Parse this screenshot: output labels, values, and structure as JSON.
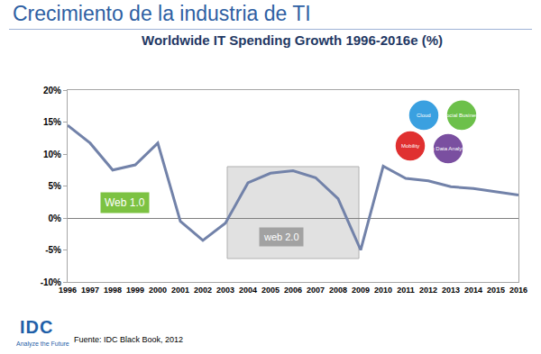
{
  "header": {
    "title": "Crecimiento de la industria de TI"
  },
  "chart_data": {
    "type": "line",
    "title": "Worldwide IT Spending Growth 1996-2016e (%)",
    "categories": [
      "1996",
      "1997",
      "1998",
      "1999",
      "2000",
      "2001",
      "2002",
      "2003",
      "2004",
      "2005",
      "2006",
      "2007",
      "2008",
      "2009",
      "2010",
      "2011",
      "2012",
      "2013",
      "2014",
      "2015",
      "2016"
    ],
    "values": [
      14.5,
      11.7,
      7.5,
      8.3,
      11.7,
      -0.5,
      -3.5,
      -0.8,
      5.5,
      7.0,
      7.4,
      6.3,
      3.0,
      -5.0,
      8.1,
      6.2,
      5.8,
      4.9,
      4.6,
      4.1,
      3.6
    ],
    "color": "#7282a9",
    "line_style": "solid",
    "ylim": [
      -10,
      20
    ],
    "yticks": [
      {
        "value": -10,
        "label": "-10%"
      },
      {
        "value": -5,
        "label": "-5%"
      },
      {
        "value": 0,
        "label": "0%"
      },
      {
        "value": 5,
        "label": "5%"
      },
      {
        "value": 10,
        "label": "10%"
      },
      {
        "value": 15,
        "label": "15%"
      },
      {
        "value": 20,
        "label": "20%"
      }
    ],
    "grid": false,
    "annotations": [
      "Web 1.0",
      "web 2.0",
      "Cloud",
      "Social Business",
      "Mobility",
      "Big Data Analytics"
    ]
  },
  "footer": {
    "logo": "IDC",
    "tagline": "Analyze the Future",
    "source": "Fuente: IDC Black Book, 2012"
  }
}
